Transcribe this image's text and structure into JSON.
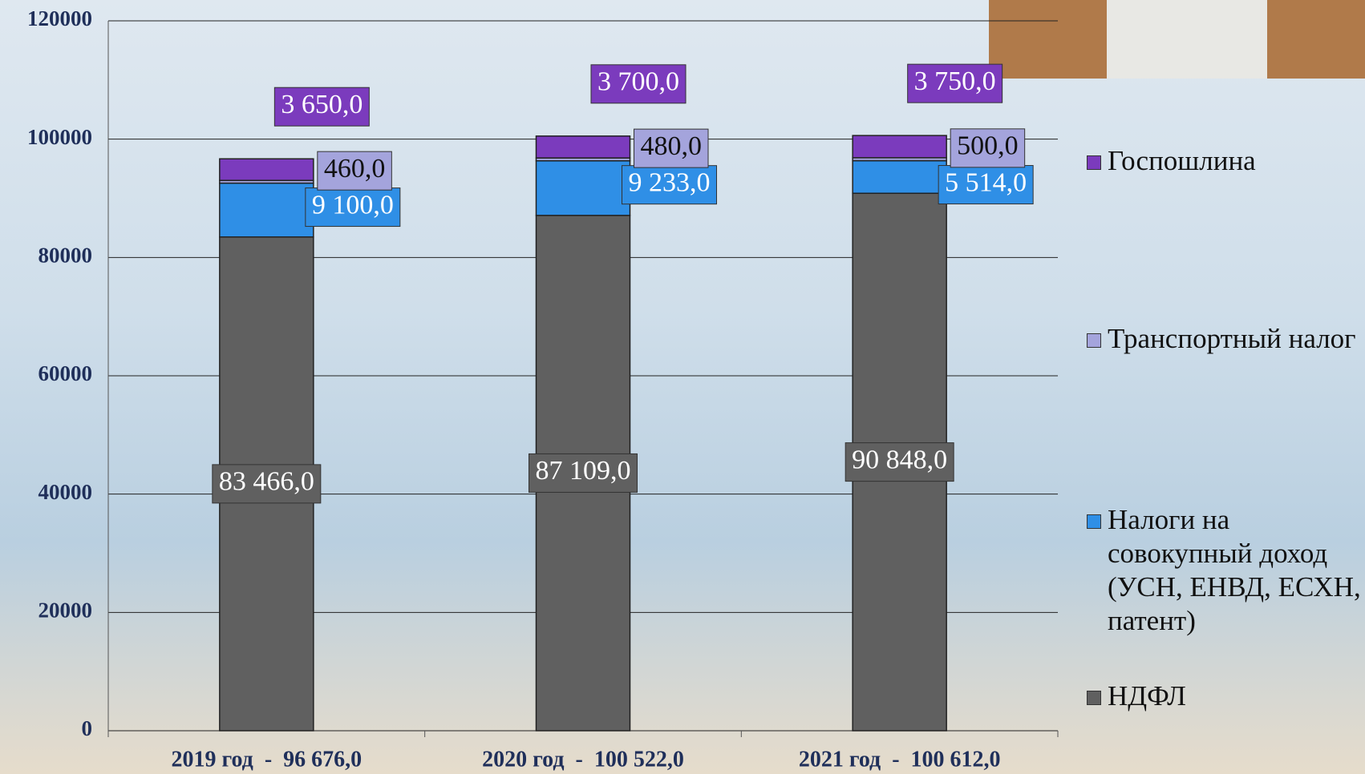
{
  "chart_data": {
    "type": "stacked-bar",
    "categories": [
      "2019 год  -  96 676,0",
      "2020 год  -  100 522,0",
      "2021 год  -  100 612,0"
    ],
    "series": [
      {
        "name": "НДФЛ",
        "color": "#606060",
        "values": [
          83466,
          87109,
          90848
        ],
        "value_labels": [
          "83 466,0",
          "87 109,0",
          "90 848,0"
        ]
      },
      {
        "name": "Налоги на совокупный доход (УСН, ЕНВД, ЕСХН, патент)",
        "color": "#2f8fe6",
        "values": [
          9100,
          9233,
          5514
        ],
        "value_labels": [
          "9 100,0",
          "9 233,0",
          "5 514,0"
        ]
      },
      {
        "name": "Транспортный налог",
        "color": "#a4a4dc",
        "values": [
          460,
          480,
          500
        ],
        "value_labels": [
          "460,0",
          "480,0",
          "500,0"
        ]
      },
      {
        "name": "Госпошлина",
        "color": "#7b3bbd",
        "values": [
          3650,
          3700,
          3750
        ],
        "value_labels": [
          "3 650,0",
          "3 700,0",
          "3 750,0"
        ]
      }
    ],
    "ylim": [
      0,
      120000
    ],
    "yticks": [
      0,
      20000,
      40000,
      60000,
      80000,
      100000,
      120000
    ],
    "grid": true
  }
}
